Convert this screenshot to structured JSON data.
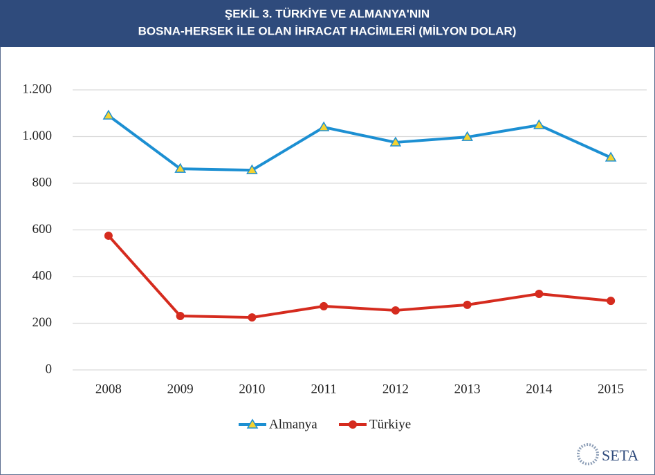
{
  "chart_data": {
    "type": "line",
    "title": [
      "ŞEKİL 3. TÜRKİYE VE ALMANYA'NIN",
      "BOSNA-HERSEK İLE OLAN İHRACAT HACİMLERİ (MİLYON DOLAR)"
    ],
    "categories": [
      "2008",
      "2009",
      "2010",
      "2011",
      "2012",
      "2013",
      "2014",
      "2015"
    ],
    "series": [
      {
        "name": "Almanya",
        "color": "#1c8fd2",
        "marker": "triangle",
        "marker_color": "#f5d230",
        "values": [
          1090,
          862,
          856,
          1040,
          975,
          998,
          1049,
          910
        ]
      },
      {
        "name": "Türkiye",
        "color": "#d52b1e",
        "marker": "circle",
        "marker_color": "#d52b1e",
        "values": [
          575,
          231,
          225,
          273,
          255,
          279,
          326,
          296
        ]
      }
    ],
    "ylim": [
      0,
      1200
    ],
    "yticks": [
      0,
      200,
      400,
      600,
      800,
      {
        "value": 1000,
        "label": "1.000"
      },
      {
        "value": 1200,
        "label": "1.200"
      }
    ],
    "grid": true,
    "legend": "bottom",
    "logo": "SETA"
  }
}
